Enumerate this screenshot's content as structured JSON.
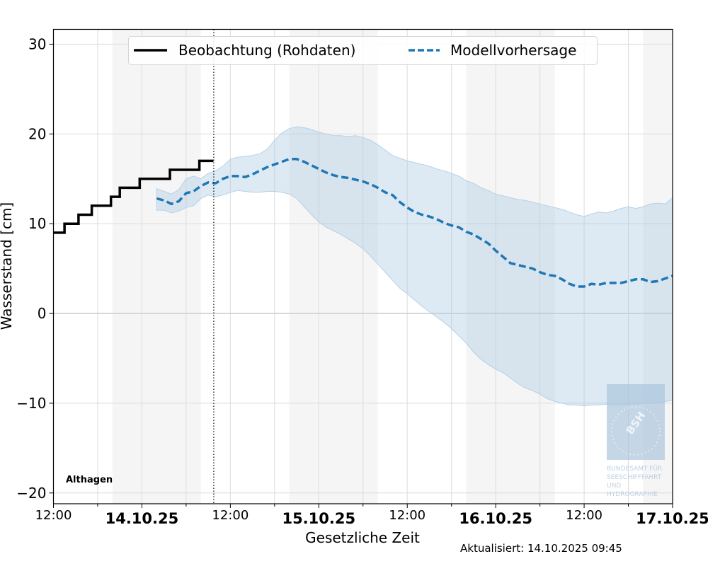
{
  "chart_data": {
    "type": "line",
    "title": "",
    "xlabel": "Gesetzliche Zeit",
    "ylabel": "Wasserstand [cm]",
    "ylim": [
      -21.2,
      31.65
    ],
    "xlim_hours": [
      0,
      84
    ],
    "x_reference": "13.10.25 12:00 = hour 0",
    "yticks": [
      30,
      20,
      10,
      0,
      -10,
      -20
    ],
    "ytick_labels": [
      "30",
      "20",
      "10",
      "0",
      "−10",
      "−20"
    ],
    "xticks": [
      {
        "hour": 0,
        "label": "12:00",
        "bold": false
      },
      {
        "hour": 12,
        "label": "14.10.25",
        "bold": true
      },
      {
        "hour": 24,
        "label": "12:00",
        "bold": false
      },
      {
        "hour": 36,
        "label": "15.10.25",
        "bold": true
      },
      {
        "hour": 48,
        "label": "12:00",
        "bold": false
      },
      {
        "hour": 60,
        "label": "16.10.25",
        "bold": true
      },
      {
        "hour": 72,
        "label": "12:00",
        "bold": false
      },
      {
        "hour": 84,
        "label": "17.10.25",
        "bold": true
      }
    ],
    "minor_xticks_hours": [
      6,
      18,
      30,
      42,
      54,
      66,
      78
    ],
    "grid": true,
    "night_shading_hours": [
      [
        8,
        20
      ],
      [
        32,
        44
      ],
      [
        56,
        68
      ],
      [
        80,
        84
      ]
    ],
    "now_marker_hour": 21.75,
    "legend": {
      "placement": "top-center",
      "entries": [
        "Beobachtung (Rohdaten)",
        "Modellvorhersage"
      ]
    },
    "series": [
      {
        "name": "Beobachtung (Rohdaten)",
        "style": "step",
        "color": "#000000",
        "points": [
          [
            0,
            9
          ],
          [
            1.5,
            10
          ],
          [
            3.4,
            11
          ],
          [
            5.2,
            12
          ],
          [
            7.8,
            13
          ],
          [
            9.0,
            14
          ],
          [
            11.7,
            15
          ],
          [
            15.8,
            16
          ],
          [
            19.8,
            17
          ],
          [
            21.7,
            17
          ]
        ]
      },
      {
        "name": "Modellvorhersage",
        "style": "dashed",
        "color": "#1f77b4",
        "band_color": "#cfe0ef",
        "x": [
          14.0,
          15.0,
          16.0,
          17.0,
          18.0,
          19.0,
          20.0,
          21.0,
          22.0,
          23.0,
          24.0,
          25.0,
          26.0,
          27.0,
          28.0,
          29.0,
          30.0,
          31.0,
          32.0,
          33.0,
          34.0,
          35.0,
          36.0,
          37.0,
          38.0,
          39.0,
          40.0,
          41.0,
          42.0,
          43.0,
          44.0,
          45.0,
          46.0,
          47.0,
          48.0,
          49.0,
          50.0,
          51.0,
          52.0,
          53.0,
          54.0,
          55.0,
          56.0,
          57.0,
          58.0,
          59.0,
          60.0,
          61.0,
          62.0,
          63.0,
          64.0,
          65.0,
          66.0,
          67.0,
          68.0,
          69.0,
          70.0,
          71.0,
          72.0,
          73.0,
          74.0,
          75.0,
          76.0,
          77.0,
          78.0,
          79.0,
          80.0,
          81.0,
          82.0,
          83.0,
          84.0
        ],
        "mean": [
          12.8,
          12.6,
          12.2,
          12.5,
          13.4,
          13.6,
          14.2,
          14.6,
          14.5,
          15.0,
          15.3,
          15.3,
          15.2,
          15.5,
          15.9,
          16.3,
          16.6,
          16.9,
          17.2,
          17.2,
          16.9,
          16.5,
          16.1,
          15.7,
          15.4,
          15.2,
          15.1,
          14.9,
          14.7,
          14.4,
          14.0,
          13.5,
          13.2,
          12.4,
          11.8,
          11.3,
          11.0,
          10.8,
          10.5,
          10.1,
          9.8,
          9.6,
          9.1,
          8.8,
          8.3,
          7.8,
          7.0,
          6.3,
          5.6,
          5.4,
          5.2,
          5.0,
          4.6,
          4.3,
          4.2,
          3.8,
          3.3,
          3.0,
          3.0,
          3.3,
          3.2,
          3.4,
          3.4,
          3.4,
          3.6,
          3.8,
          3.8,
          3.5,
          3.6,
          3.9,
          4.2
        ],
        "lower": [
          11.5,
          11.5,
          11.2,
          11.4,
          11.8,
          12.0,
          12.8,
          13.2,
          13.0,
          13.2,
          13.5,
          13.7,
          13.6,
          13.5,
          13.5,
          13.6,
          13.6,
          13.5,
          13.3,
          12.8,
          11.9,
          11.0,
          10.2,
          9.6,
          9.2,
          8.8,
          8.3,
          7.8,
          7.2,
          6.4,
          5.5,
          4.6,
          3.7,
          2.8,
          2.2,
          1.5,
          0.8,
          0.2,
          -0.4,
          -1.0,
          -1.7,
          -2.5,
          -3.3,
          -4.3,
          -5.1,
          -5.7,
          -6.2,
          -6.6,
          -7.2,
          -7.8,
          -8.3,
          -8.6,
          -9.0,
          -9.5,
          -9.8,
          -10.0,
          -10.2,
          -10.2,
          -10.3,
          -10.2,
          -10.2,
          -10.1,
          -10.2,
          -10.2,
          -10.1,
          -10.1,
          -10.0,
          -10.0,
          -10.0,
          -9.8,
          -9.7
        ],
        "upper": [
          13.9,
          13.6,
          13.3,
          13.8,
          15.0,
          15.3,
          15.0,
          15.6,
          15.9,
          16.4,
          17.2,
          17.4,
          17.5,
          17.6,
          17.8,
          18.3,
          19.3,
          20.1,
          20.6,
          20.8,
          20.7,
          20.5,
          20.2,
          20.0,
          19.8,
          19.8,
          19.7,
          19.8,
          19.6,
          19.3,
          18.8,
          18.2,
          17.6,
          17.3,
          17.0,
          16.8,
          16.6,
          16.4,
          16.1,
          15.9,
          15.6,
          15.3,
          14.8,
          14.5,
          14.0,
          13.7,
          13.3,
          13.1,
          12.9,
          12.7,
          12.6,
          12.4,
          12.2,
          12.0,
          11.8,
          11.6,
          11.3,
          11.0,
          10.8,
          11.1,
          11.3,
          11.2,
          11.4,
          11.7,
          11.9,
          11.7,
          11.9,
          12.2,
          12.3,
          12.2,
          12.9
        ]
      }
    ],
    "annotations": {
      "station": "Althagen",
      "updated": "Aktualisiert: 14.10.2025 09:45"
    },
    "logo": {
      "text_lines": [
        "BUNDESAMT FÜR",
        "SEESCHIFFFAHRT",
        "UND",
        "HYDROGRAPHIE"
      ],
      "mark": "BSH"
    }
  }
}
